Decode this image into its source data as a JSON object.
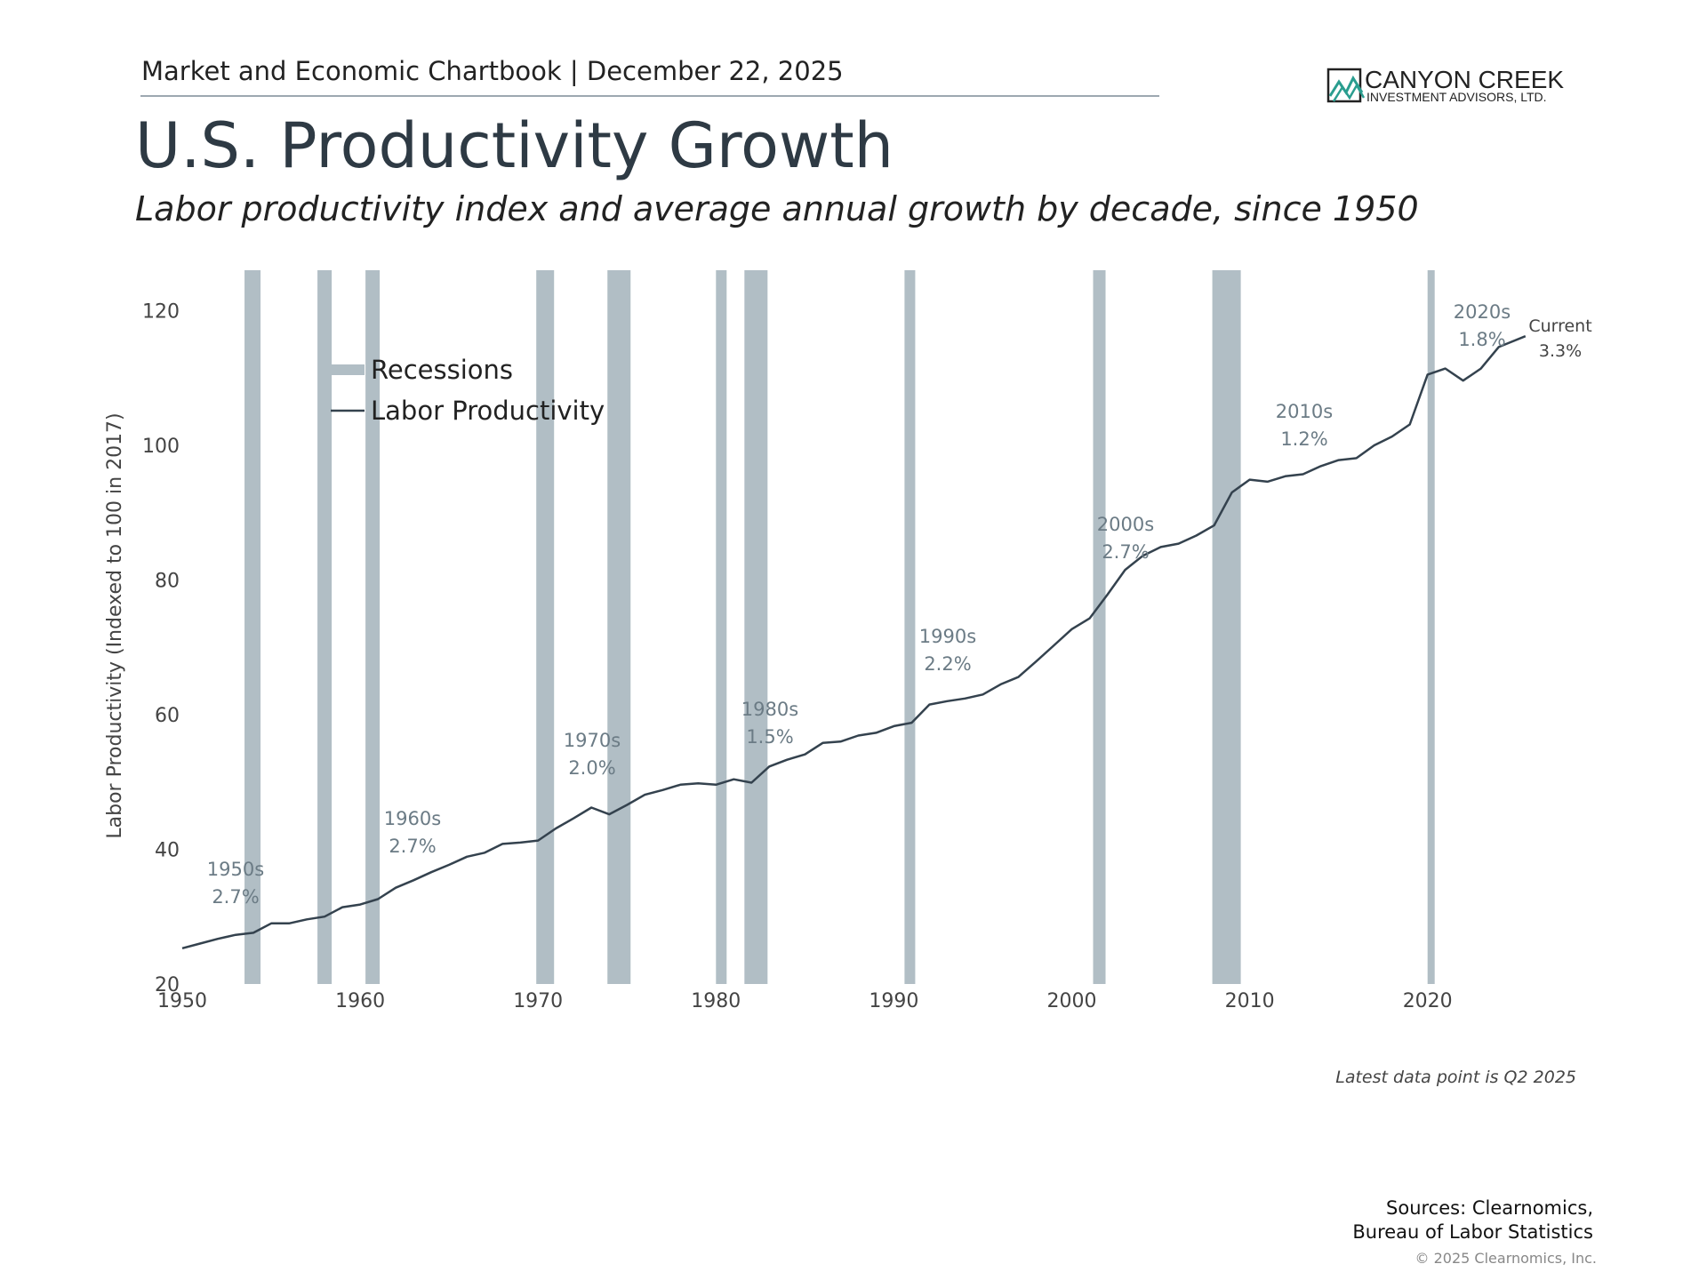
{
  "header": {
    "chartbook": "Market and Economic Chartbook | December 22, 2025",
    "logo_name": "CANYON CREEK",
    "logo_sub": "INVESTMENT ADVISORS, LTD."
  },
  "chart_data": {
    "type": "line",
    "title": "U.S. Productivity Growth",
    "subtitle": "Labor productivity index and average annual growth by decade, since 1950",
    "y_label": "Labor Productivity (Indexed to 100 in 2017)",
    "xlim": [
      1950,
      2027
    ],
    "xticks": [
      1950,
      1960,
      1970,
      1980,
      1990,
      2000,
      2010,
      2020
    ],
    "ylim": [
      20,
      126
    ],
    "yticks": [
      20,
      40,
      60,
      80,
      100,
      120
    ],
    "grid": false,
    "legend": "upper left",
    "recessions": {
      "name": "Recessions",
      "color": "#b1bec5",
      "spans": [
        [
          1953.5,
          1954.4
        ],
        [
          1957.6,
          1958.4
        ],
        [
          1960.3,
          1961.1
        ],
        [
          1969.9,
          1970.9
        ],
        [
          1973.9,
          1975.2
        ],
        [
          1980.0,
          1980.6
        ],
        [
          1981.6,
          1982.9
        ],
        [
          1990.6,
          1991.2
        ],
        [
          2001.2,
          2001.9
        ],
        [
          2007.9,
          2009.5
        ],
        [
          2020.0,
          2020.4
        ]
      ]
    },
    "series": [
      {
        "name": "Labor Productivity",
        "color": "#34424e",
        "x": [
          1950,
          1951,
          1952,
          1953,
          1954,
          1955,
          1956,
          1957,
          1958,
          1959,
          1960,
          1961,
          1962,
          1963,
          1964,
          1965,
          1966,
          1967,
          1968,
          1969,
          1970,
          1971,
          1972,
          1973,
          1974,
          1975,
          1976,
          1977,
          1978,
          1979,
          1980,
          1981,
          1982,
          1983,
          1984,
          1985,
          1986,
          1987,
          1988,
          1989,
          1990,
          1991,
          1992,
          1993,
          1994,
          1995,
          1996,
          1997,
          1998,
          1999,
          2000,
          2001,
          2002,
          2003,
          2004,
          2005,
          2006,
          2007,
          2008,
          2009,
          2010,
          2011,
          2012,
          2013,
          2014,
          2015,
          2016,
          2017,
          2018,
          2019,
          2020,
          2021,
          2022,
          2023,
          2024,
          2025.5
        ],
        "values": [
          25.3,
          26,
          26.7,
          27.3,
          27.6,
          29,
          29,
          29.6,
          30,
          31.4,
          31.8,
          32.6,
          34.3,
          35.4,
          36.6,
          37.7,
          38.9,
          39.5,
          40.8,
          41.0,
          41.3,
          43.1,
          44.6,
          46.2,
          45.2,
          46.6,
          48.1,
          48.8,
          49.6,
          49.8,
          49.6,
          50.4,
          49.9,
          52.3,
          53.3,
          54.1,
          55.8,
          56.0,
          56.9,
          57.3,
          58.3,
          58.8,
          61.5,
          62.0,
          62.4,
          63.0,
          64.5,
          65.6,
          67.9,
          70.3,
          72.7,
          74.3,
          77.8,
          81.5,
          83.6,
          84.9,
          85.4,
          86.6,
          88.1,
          93.0,
          94.9,
          94.6,
          95.4,
          95.7,
          96.9,
          97.8,
          98.1,
          100,
          101.3,
          103.1,
          110.5,
          111.4,
          109.6,
          111.4,
          114.6,
          116.2
        ]
      }
    ],
    "annotations": [
      {
        "label": "1950s",
        "growth": "2.7%"
      },
      {
        "label": "1960s",
        "growth": "2.7%"
      },
      {
        "label": "1970s",
        "growth": "2.0%"
      },
      {
        "label": "1980s",
        "growth": "1.5%"
      },
      {
        "label": "1990s",
        "growth": "2.2%"
      },
      {
        "label": "2000s",
        "growth": "2.7%"
      },
      {
        "label": "2010s",
        "growth": "1.2%"
      },
      {
        "label": "2020s",
        "growth": "1.8%"
      },
      {
        "label": "Current",
        "growth": "3.3%"
      }
    ],
    "note": "Latest data point is Q2 2025"
  },
  "footer": {
    "sources_1": "Sources: Clearnomics,",
    "sources_2": "Bureau of Labor Statistics",
    "copyright": "© 2025 Clearnomics, Inc."
  }
}
